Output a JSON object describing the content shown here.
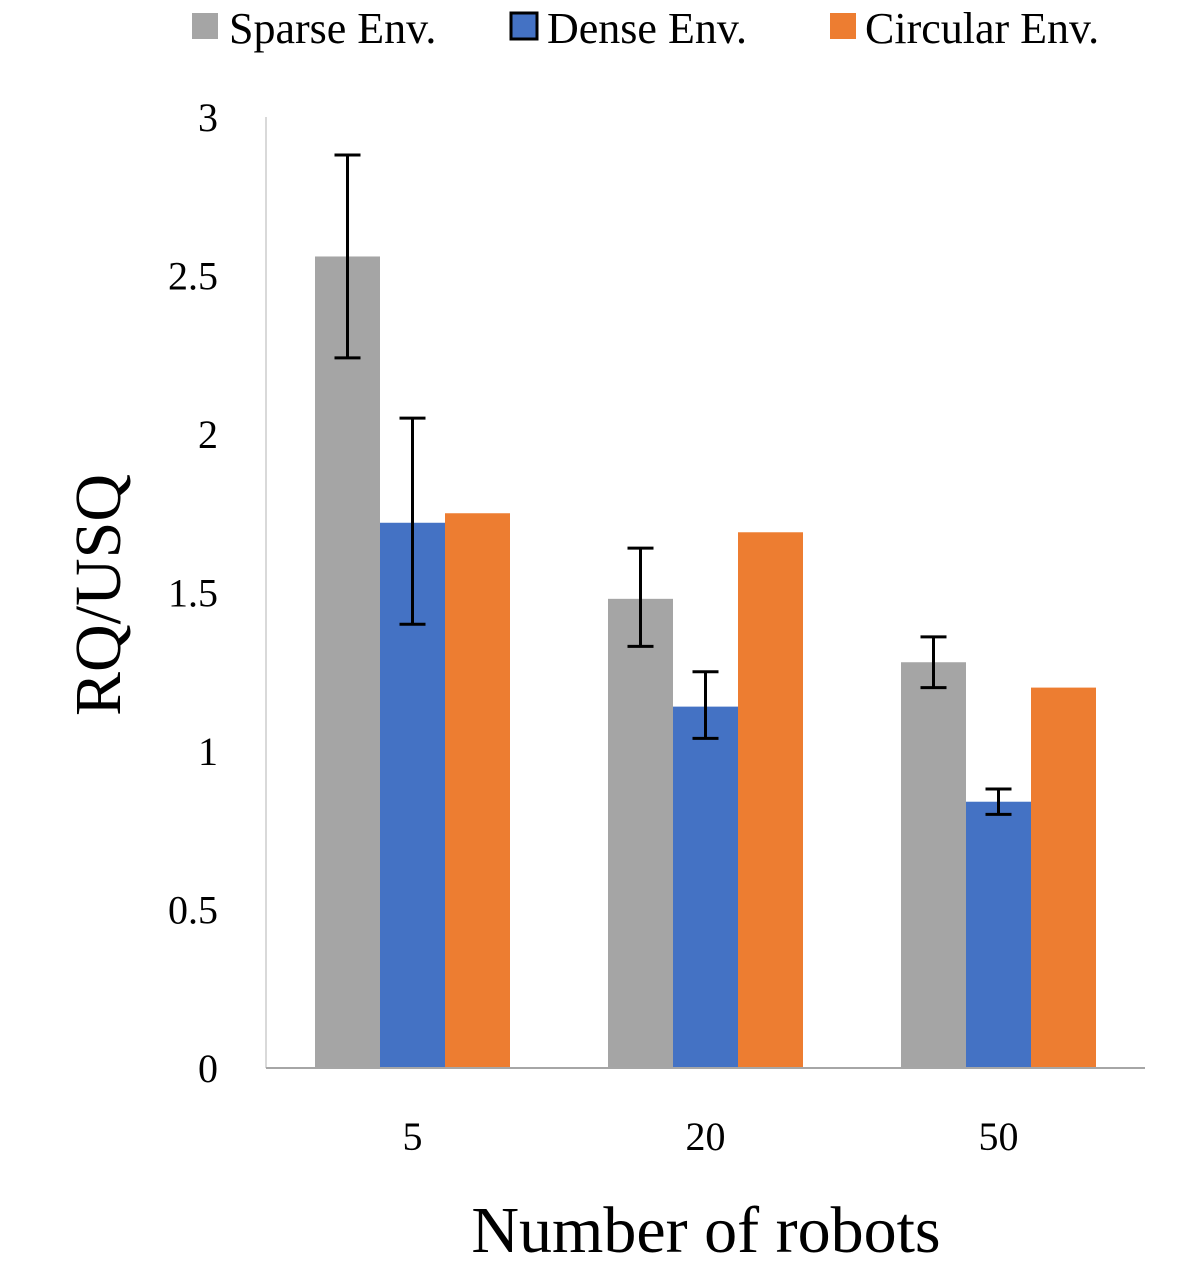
{
  "chart_data": {
    "type": "bar",
    "title": "",
    "xlabel": "Number of robots",
    "ylabel": "RQ/USQ",
    "categories": [
      "5",
      "20",
      "50"
    ],
    "ylim": [
      0,
      3
    ],
    "yticks": [
      0,
      0.5,
      1,
      1.5,
      2,
      2.5,
      3
    ],
    "ytick_labels": [
      "0",
      "0.5",
      "1",
      "1.5",
      "2",
      "2.5",
      "3"
    ],
    "grid": false,
    "legend_position": "top",
    "series": [
      {
        "name": "Sparse Env.",
        "color": "#a5a5a5",
        "values": [
          2.56,
          1.48,
          1.28
        ],
        "error_low": [
          2.24,
          1.33,
          1.2
        ],
        "error_high": [
          2.88,
          1.64,
          1.36
        ]
      },
      {
        "name": "Dense Env.",
        "color": "#4472c4",
        "values": [
          1.72,
          1.14,
          0.84
        ],
        "error_low": [
          1.4,
          1.04,
          0.8
        ],
        "error_high": [
          2.05,
          1.25,
          0.88
        ]
      },
      {
        "name": "Circular Env.",
        "color": "#ed7d31",
        "values": [
          1.75,
          1.69,
          1.2
        ]
      }
    ]
  }
}
